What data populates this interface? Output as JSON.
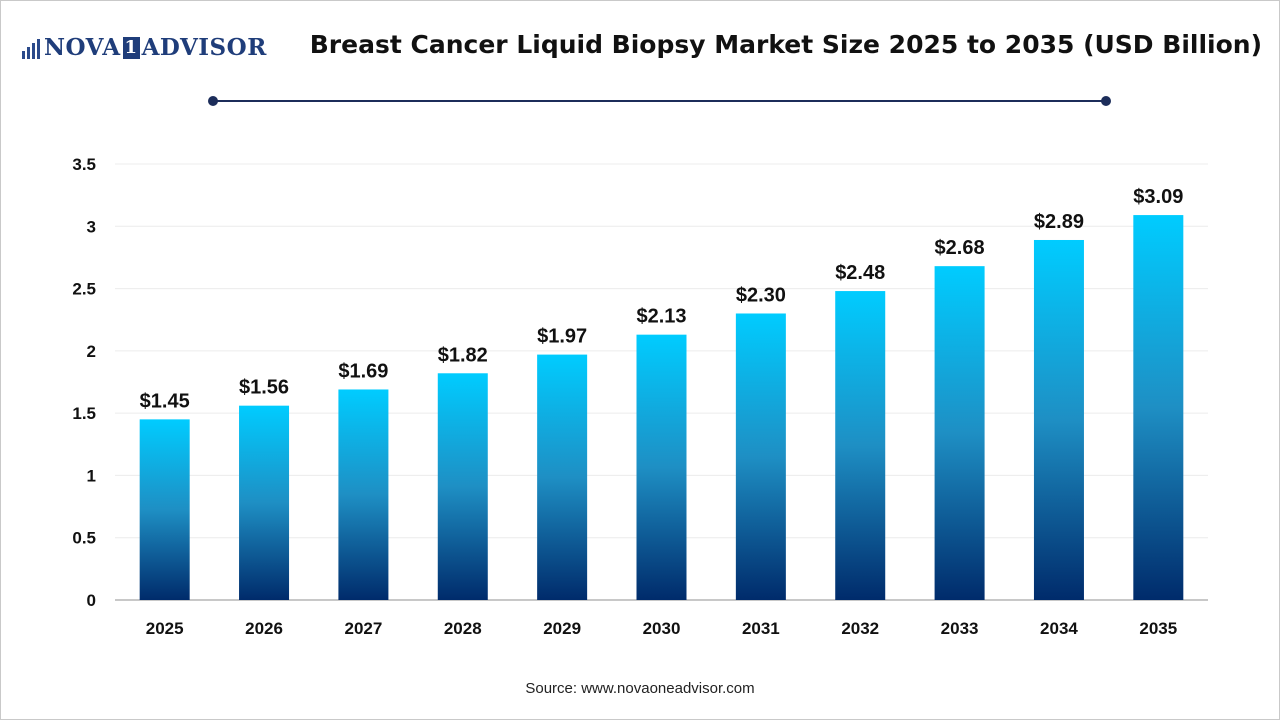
{
  "logo": {
    "part1": "NOVA",
    "part2": "1",
    "part3": "ADVISOR"
  },
  "source": "Source: www.novaoneadvisor.com",
  "colors": {
    "bar_top": "#00ccff",
    "bar_mid": "#1e8fc4",
    "bar_bottom": "#002b6b",
    "title_rule": "#1c2d5a"
  },
  "chart_data": {
    "type": "bar",
    "title": "Breast Cancer Liquid Biopsy Market Size 2025 to 2035 (USD Billion)",
    "xlabel": "",
    "ylabel": "",
    "categories": [
      "2025",
      "2026",
      "2027",
      "2028",
      "2029",
      "2030",
      "2031",
      "2032",
      "2033",
      "2034",
      "2035"
    ],
    "values": [
      1.45,
      1.56,
      1.69,
      1.82,
      1.97,
      2.13,
      2.3,
      2.48,
      2.68,
      2.89,
      3.09
    ],
    "value_labels": [
      "$1.45",
      "$1.56",
      "$1.69",
      "$1.82",
      "$1.97",
      "$2.13",
      "$2.30",
      "$2.48",
      "$2.68",
      "$2.89",
      "$3.09"
    ],
    "yticks": [
      "0",
      "0.5",
      "1",
      "1.5",
      "2",
      "2.5",
      "3",
      "3.5"
    ],
    "ylim": [
      0,
      3.5
    ],
    "grid": true,
    "legend": "none"
  }
}
